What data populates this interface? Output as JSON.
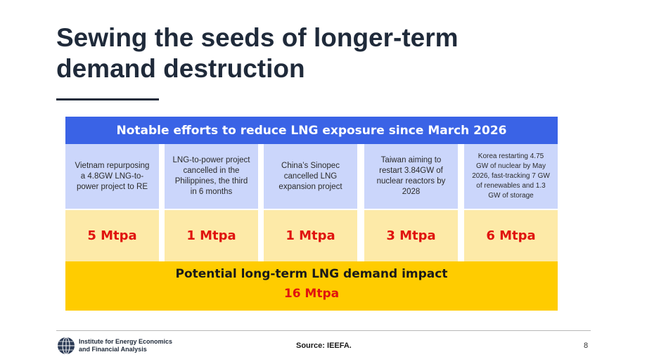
{
  "slide": {
    "title_line1": "Sewing the seeds of longer-term",
    "title_line2": "demand destruction"
  },
  "panel": {
    "header": "Notable efforts to reduce LNG exposure since March 2026",
    "columns": [
      {
        "description": "Vietnam repurposing a 4.8GW LNG-to-power project to RE",
        "value": "5 Mtpa"
      },
      {
        "description": "LNG-to-power project cancelled in the Philippines, the third in 6 months",
        "value": "1 Mtpa"
      },
      {
        "description": "China’s Sinopec cancelled LNG expansion project",
        "value": "1 Mtpa"
      },
      {
        "description": "Taiwan aiming to restart 3.84GW of nuclear reactors by 2028",
        "value": "3 Mtpa"
      },
      {
        "description": "Korea restarting 4.75 GW of nuclear by May 2026, fast-tracking 7 GW of renewables and 1.3 GW of storage",
        "value": "6 Mtpa"
      }
    ],
    "impact_label": "Potential long-term LNG demand impact",
    "impact_value": "16 Mtpa"
  },
  "footer": {
    "logo_line1": "Institute for Energy Economics",
    "logo_line2": "and Financial Analysis",
    "source": "Source: IEEFA.",
    "page_number": "8"
  },
  "colors": {
    "header_blue": "#3a63e6",
    "desc_blue": "#cbd6fb",
    "value_yellow": "#fdeaa8",
    "impact_yellow": "#ffcc00",
    "value_red": "#e0130f",
    "title_navy": "#1f2a3a"
  }
}
